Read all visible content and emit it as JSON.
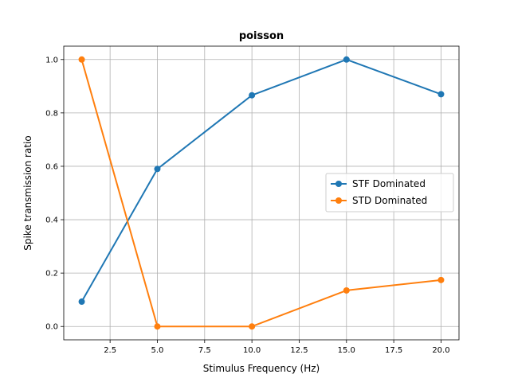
{
  "chart_data": {
    "type": "line",
    "title": "poisson",
    "xlabel": "Stimulus Frequency (Hz)",
    "ylabel": "Spike transmission ratio",
    "xlim": [
      0.05,
      20.95
    ],
    "ylim": [
      -0.05,
      1.05
    ],
    "xticks": [
      2.5,
      5.0,
      7.5,
      10.0,
      12.5,
      15.0,
      17.5,
      20.0
    ],
    "xtick_labels": [
      "2.5",
      "5.0",
      "7.5",
      "10.0",
      "12.5",
      "15.0",
      "17.5",
      "20.0"
    ],
    "yticks": [
      0.0,
      0.2,
      0.4,
      0.6,
      0.8,
      1.0
    ],
    "ytick_labels": [
      "0.0",
      "0.2",
      "0.4",
      "0.6",
      "0.8",
      "1.0"
    ],
    "grid": true,
    "legend_position": "center-right",
    "x": [
      1,
      5,
      10,
      15,
      20
    ],
    "series": [
      {
        "name": "STF Dominated",
        "color": "#1f77b4",
        "values": [
          0.093,
          0.59,
          0.866,
          1.0,
          0.87
        ]
      },
      {
        "name": "STD Dominated",
        "color": "#ff7f0e",
        "values": [
          1.0,
          0.0,
          0.0,
          0.135,
          0.174
        ]
      }
    ]
  }
}
